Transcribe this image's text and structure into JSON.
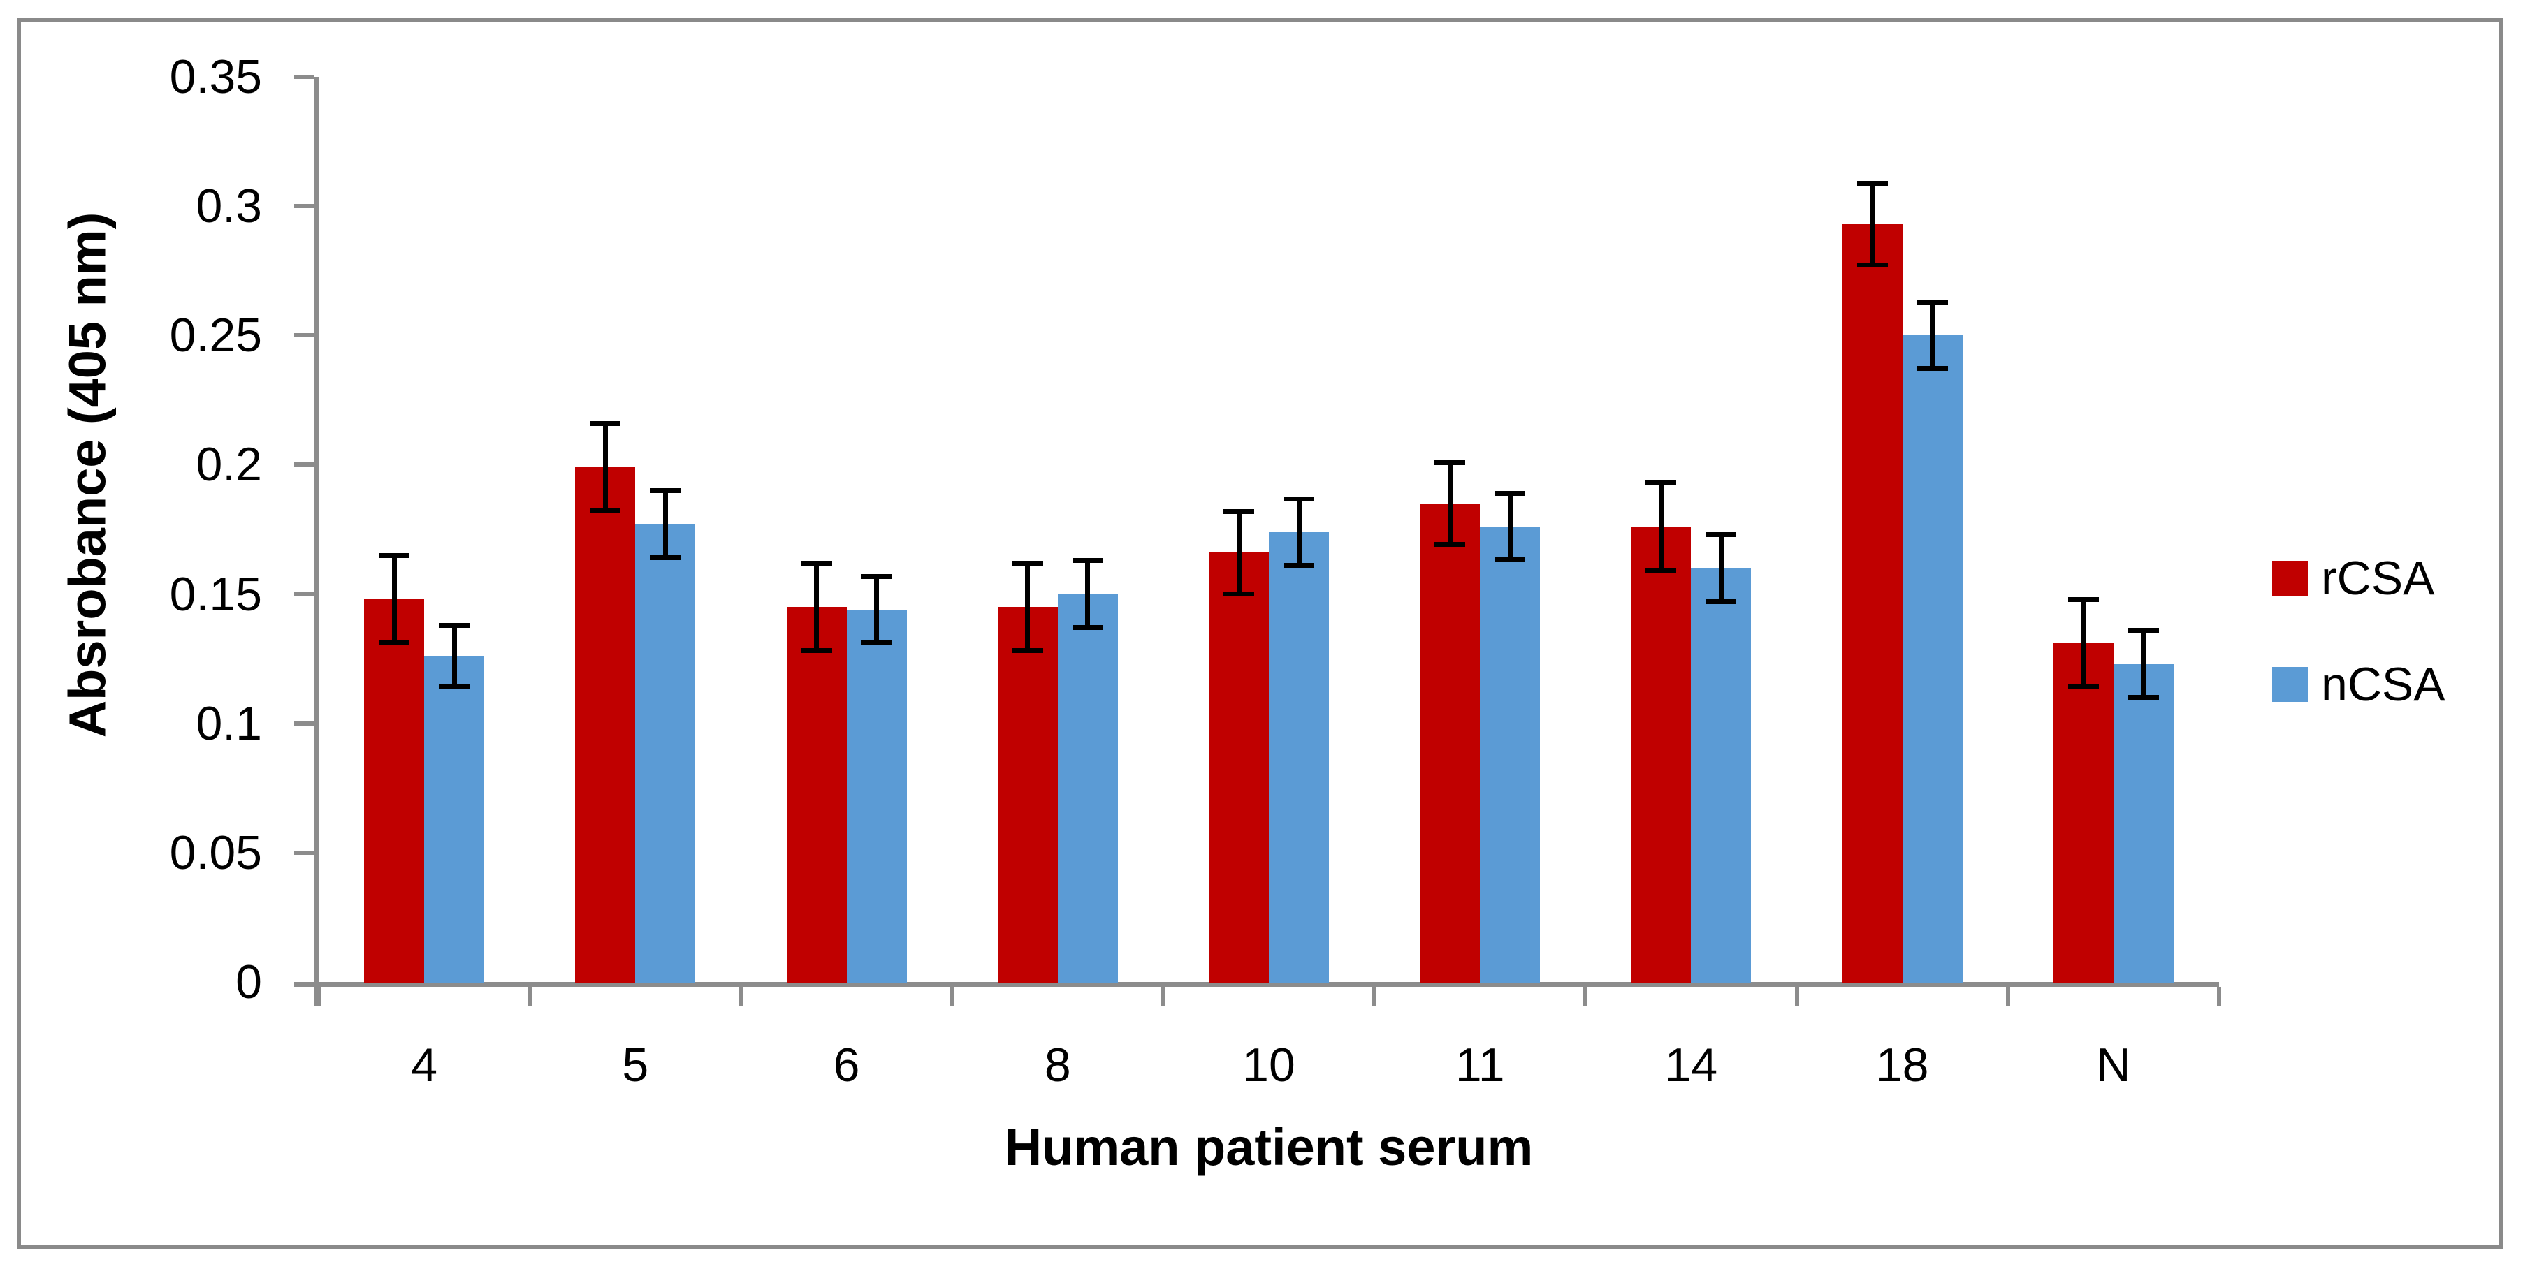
{
  "chart_data": {
    "type": "bar",
    "xlabel": "Human patient serum",
    "ylabel": "Absrobance (405 nm)",
    "categories": [
      "4",
      "5",
      "6",
      "8",
      "10",
      "11",
      "14",
      "18",
      "N"
    ],
    "series": [
      {
        "name": "rCSA",
        "color": "#C00000",
        "values": [
          0.148,
          0.199,
          0.145,
          0.145,
          0.166,
          0.185,
          0.176,
          0.293,
          0.131
        ],
        "errors": [
          0.017,
          0.017,
          0.017,
          0.017,
          0.016,
          0.016,
          0.017,
          0.016,
          0.017
        ]
      },
      {
        "name": "nCSA",
        "color": "#5B9BD5",
        "values": [
          0.126,
          0.177,
          0.144,
          0.15,
          0.174,
          0.176,
          0.16,
          0.25,
          0.123
        ],
        "errors": [
          0.012,
          0.013,
          0.013,
          0.013,
          0.013,
          0.013,
          0.013,
          0.013,
          0.013
        ]
      }
    ],
    "y_axis": {
      "min": 0,
      "max": 0.35,
      "step": 0.05,
      "tick_labels": [
        "0",
        "0.05",
        "0.1",
        "0.15",
        "0.2",
        "0.25",
        "0.3",
        "0.35"
      ]
    },
    "ylim": [
      0,
      0.35
    ],
    "grid": false,
    "legend": {
      "position": "right",
      "entries": [
        "rCSA",
        "nCSA"
      ]
    },
    "error_bar_color": "#000000",
    "axis_color": "#8C8C8C",
    "frame_border_color": "#8A8A8A"
  }
}
